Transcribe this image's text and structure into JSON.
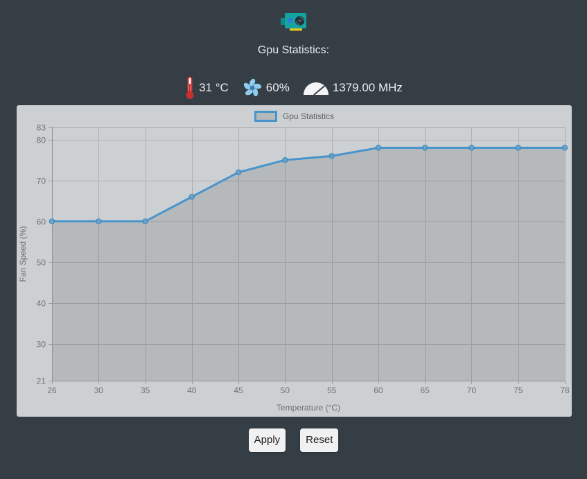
{
  "header": {
    "title": "Gpu Statistics:",
    "gpu_icon": "gpu-card-icon"
  },
  "stats": {
    "temperature": {
      "icon": "thermometer-icon",
      "value": "31 °C",
      "color": "#c7302f"
    },
    "fan_speed": {
      "icon": "fan-icon",
      "value": "60%",
      "color": "#8ecdf0"
    },
    "clock": {
      "icon": "gauge-icon",
      "value": "1379.00 MHz",
      "color": "#f2f4f5"
    }
  },
  "chart_data": {
    "type": "line",
    "legend_label": "Gpu Statistics",
    "x": [
      26,
      30,
      35,
      40,
      45,
      50,
      55,
      60,
      65,
      70,
      75,
      78
    ],
    "values": [
      60,
      60,
      60,
      66,
      72,
      75,
      76,
      78,
      78,
      78,
      78,
      78
    ],
    "xlabel": "Temperature (°C)",
    "ylabel": "Fan Speed (%)",
    "y_ticks": [
      21,
      30,
      40,
      50,
      60,
      70,
      80,
      83
    ],
    "ylim": [
      21,
      83
    ],
    "x_axis_type": "category",
    "grid": true,
    "legend_position": "top",
    "line_color": "#4795cc",
    "fill_color": "rgba(0,0,0,0.11)",
    "background_color": "#cdd0d2"
  },
  "buttons": {
    "apply": "Apply",
    "reset": "Reset"
  }
}
